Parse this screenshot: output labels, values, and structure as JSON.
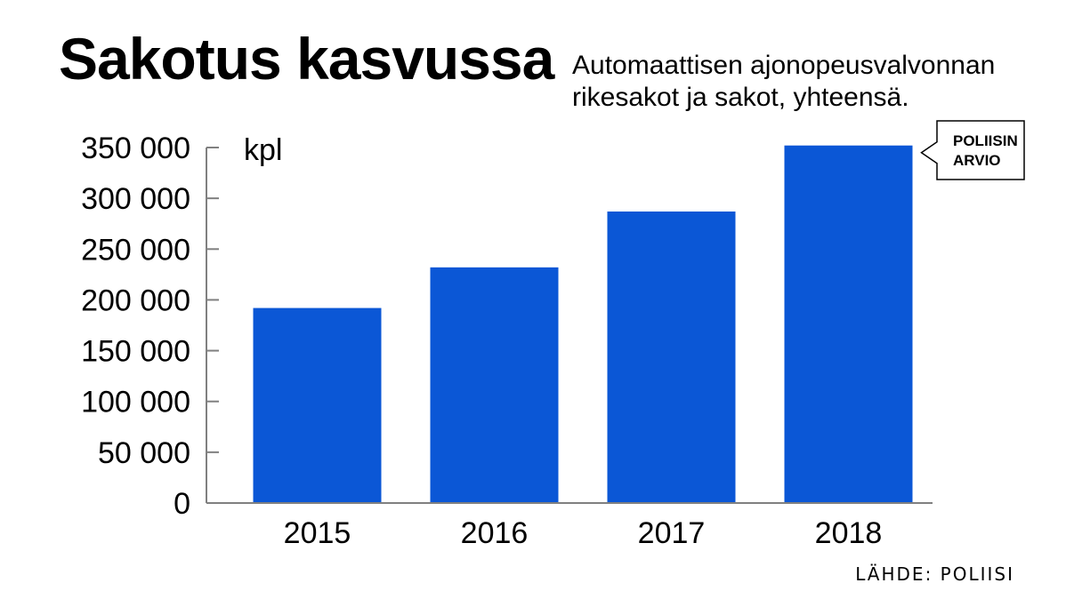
{
  "title": "Sakotus kasvussa",
  "subtitle": "Automaattisen ajonopeusvalvonnan rikesakot ja sakot, yhteensä.",
  "source": "LÄHDE: POLIISI",
  "colors": {
    "bar": "#0b57d6",
    "axis": "#808080",
    "text": "#000000"
  },
  "chart_data": {
    "type": "bar",
    "categories": [
      "2015",
      "2016",
      "2017",
      "2018"
    ],
    "values": [
      192000,
      232000,
      287000,
      352000
    ],
    "ylabel": "kpl",
    "ylim": [
      0,
      350000
    ],
    "yticks": [
      0,
      50000,
      100000,
      150000,
      200000,
      250000,
      300000,
      350000
    ],
    "ytick_labels": [
      "0",
      "50 000",
      "100 000",
      "150 000",
      "200 000",
      "250 000",
      "300 000",
      "350 000"
    ],
    "annotation": {
      "category": "2018",
      "lines": [
        "POLIISIN",
        "ARVIO"
      ]
    },
    "grid": false,
    "legend": "none"
  }
}
